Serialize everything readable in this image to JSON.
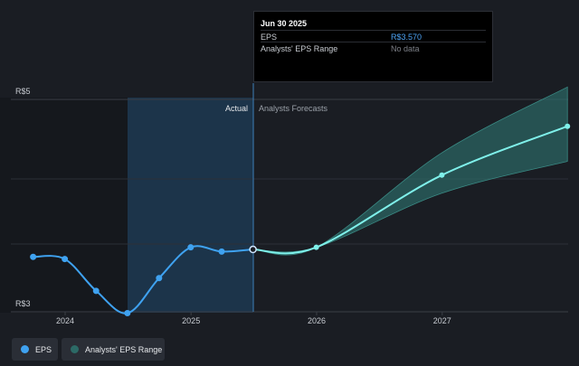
{
  "tooltip": {
    "date": "Jun 30 2025",
    "rows": [
      {
        "label": "EPS",
        "value": "R$3.570",
        "color": "#4da3f5"
      },
      {
        "label": "Analysts' EPS Range",
        "value": "No data",
        "color": "#7d8088"
      }
    ]
  },
  "legend": {
    "eps_label": "EPS",
    "range_label": "Analysts' EPS Range"
  },
  "colors": {
    "eps": "#3fa2f0",
    "forecast": "#7ff0ea",
    "range_band": "#2c6a66",
    "highlight": "#1d3a52"
  },
  "chart_data": {
    "type": "line",
    "section_labels": [
      "Actual",
      "Analysts Forecasts"
    ],
    "y_tick_labels": [
      "R$5",
      "R$3"
    ],
    "ylim": [
      3,
      5
    ],
    "x_tick_labels": [
      "2024",
      "2025",
      "2026",
      "2027"
    ],
    "series": [
      {
        "name": "EPS",
        "points": [
          {
            "x": "2023-09-30",
            "y": 3.5
          },
          {
            "x": "2023-12-31",
            "y": 3.48
          },
          {
            "x": "2024-03-31",
            "y": 3.18
          },
          {
            "x": "2024-06-30",
            "y": 2.97
          },
          {
            "x": "2024-09-30",
            "y": 3.3
          },
          {
            "x": "2024-12-31",
            "y": 3.59
          },
          {
            "x": "2025-03-31",
            "y": 3.55
          },
          {
            "x": "2025-06-30",
            "y": 3.57
          }
        ]
      },
      {
        "name": "Analysts Forecasts",
        "points": [
          {
            "x": "2025-06-30",
            "y": 3.57
          },
          {
            "x": "2025-12-31",
            "y": 3.59
          },
          {
            "x": "2026-12-31",
            "y": 4.27
          },
          {
            "x": "2027-12-31",
            "y": 4.73
          }
        ]
      }
    ],
    "range": {
      "x": [
        "2025-06-30",
        "2025-12-31",
        "2026-12-31",
        "2027-12-31"
      ],
      "low": [
        3.57,
        3.59,
        4.1,
        4.4
      ],
      "high": [
        3.57,
        3.59,
        4.48,
        5.1
      ]
    }
  }
}
